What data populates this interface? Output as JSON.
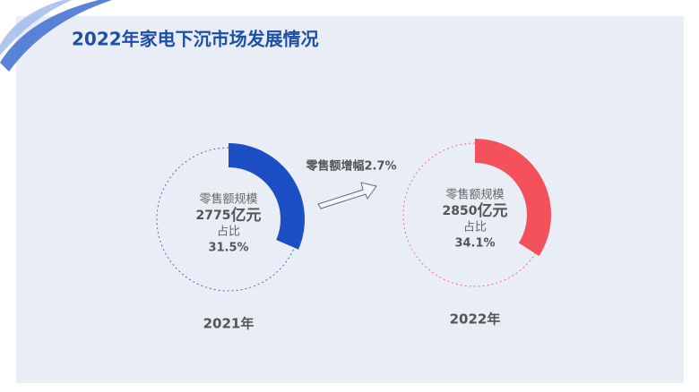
{
  "title": "2022年家电下沉市场发展情况",
  "annotation": "零售额增幅2.7%",
  "chart_data": [
    {
      "type": "donut",
      "label": "2021年",
      "sales_name": "零售额规模",
      "sales_value": 2775,
      "sales_unit": "亿元",
      "share_name": "占比",
      "values": [
        31.5
      ],
      "value_labels": [
        "31.5%"
      ],
      "color": "#1d4fc4"
    },
    {
      "type": "donut",
      "label": "2022年",
      "sales_name": "零售额规模",
      "sales_value": 2850,
      "sales_unit": "亿元",
      "share_name": "占比",
      "values": [
        34.1
      ],
      "value_labels": [
        "34.1%"
      ],
      "color": "#f4515c"
    }
  ]
}
